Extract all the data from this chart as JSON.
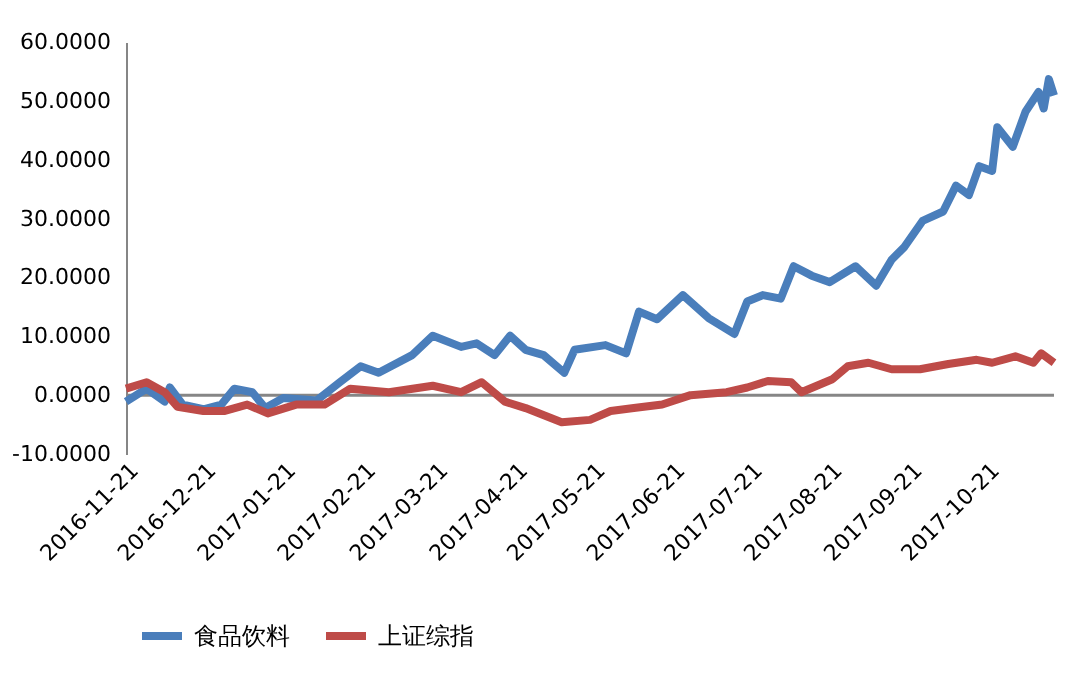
{
  "chart_data": {
    "type": "line",
    "xlim": [
      "2016-11-21",
      "2017-11-16"
    ],
    "xticks": [
      "2016-11-21",
      "2016-12-21",
      "2017-01-21",
      "2017-02-21",
      "2017-03-21",
      "2017-04-21",
      "2017-05-21",
      "2017-06-21",
      "2017-07-21",
      "2017-08-21",
      "2017-09-21",
      "2017-10-21"
    ],
    "ylim": [
      -10,
      60
    ],
    "yticks": [
      {
        "value": -10,
        "label": "-10.0000"
      },
      {
        "value": 0,
        "label": "0.0000"
      },
      {
        "value": 10,
        "label": "10.0000"
      },
      {
        "value": 20,
        "label": "20.0000"
      },
      {
        "value": 30,
        "label": "30.0000"
      },
      {
        "value": 40,
        "label": "40.0000"
      },
      {
        "value": 50,
        "label": "50.0000"
      },
      {
        "value": 60,
        "label": "60.0000"
      }
    ],
    "grid": false,
    "legend": "bottom",
    "marker": "none",
    "line_style": "solid",
    "ref_lines": [
      {
        "axis": "y",
        "value": 0,
        "color": "#868686"
      }
    ],
    "series": [
      {
        "name": "食品饮料",
        "color": "#4a7ebb",
        "x": [
          "2016-11-21",
          "2016-11-29",
          "2016-12-06",
          "2016-12-08",
          "2016-12-13",
          "2016-12-21",
          "2016-12-28",
          "2017-01-02",
          "2017-01-09",
          "2017-01-14",
          "2017-01-21",
          "2017-02-03",
          "2017-02-12",
          "2017-02-20",
          "2017-02-27",
          "2017-03-12",
          "2017-03-20",
          "2017-03-31",
          "2017-04-06",
          "2017-04-13",
          "2017-04-19",
          "2017-04-25",
          "2017-05-02",
          "2017-05-10",
          "2017-05-14",
          "2017-05-26",
          "2017-06-03",
          "2017-06-08",
          "2017-06-15",
          "2017-06-25",
          "2017-07-05",
          "2017-07-15",
          "2017-07-20",
          "2017-07-26",
          "2017-08-02",
          "2017-08-07",
          "2017-08-14",
          "2017-08-21",
          "2017-08-31",
          "2017-09-08",
          "2017-09-14",
          "2017-09-19",
          "2017-09-26",
          "2017-10-04",
          "2017-10-09",
          "2017-10-14",
          "2017-10-18",
          "2017-10-23",
          "2017-10-25",
          "2017-10-31",
          "2017-11-05",
          "2017-11-10",
          "2017-11-12",
          "2017-11-14",
          "2017-11-16"
        ],
        "values": [
          -1.1,
          1.1,
          -1.1,
          1.3,
          -1.6,
          -2.4,
          -1.6,
          1.1,
          0.5,
          -2.2,
          -0.5,
          -0.9,
          2.2,
          4.9,
          3.8,
          6.8,
          10.1,
          8.2,
          8.8,
          6.8,
          10.1,
          7.7,
          6.8,
          3.8,
          7.7,
          8.5,
          7.1,
          14.2,
          12.9,
          17.0,
          13.1,
          10.4,
          15.9,
          17.0,
          16.4,
          21.9,
          20.3,
          19.2,
          21.9,
          18.6,
          23.0,
          25.2,
          29.6,
          31.2,
          35.6,
          34.0,
          38.9,
          38.1,
          45.5,
          42.2,
          48.2,
          51.5,
          48.7,
          53.7,
          50.9
        ]
      },
      {
        "name": "上证综指",
        "color": "#be4b48",
        "x": [
          "2016-11-21",
          "2016-11-29",
          "2016-12-06",
          "2016-12-11",
          "2016-12-21",
          "2016-12-29",
          "2017-01-07",
          "2017-01-15",
          "2017-01-26",
          "2017-02-06",
          "2017-02-16",
          "2017-03-03",
          "2017-03-20",
          "2017-03-31",
          "2017-04-08",
          "2017-04-17",
          "2017-04-25",
          "2017-05-09",
          "2017-05-20",
          "2017-05-28",
          "2017-06-06",
          "2017-06-17",
          "2017-06-28",
          "2017-07-12",
          "2017-07-20",
          "2017-07-28",
          "2017-08-06",
          "2017-08-10",
          "2017-08-22",
          "2017-08-28",
          "2017-09-05",
          "2017-09-14",
          "2017-09-25",
          "2017-10-06",
          "2017-10-17",
          "2017-10-23",
          "2017-11-01",
          "2017-11-08",
          "2017-11-11",
          "2017-11-16"
        ],
        "values": [
          1.1,
          2.2,
          0.5,
          -2.0,
          -2.7,
          -2.7,
          -1.6,
          -3.1,
          -1.6,
          -1.6,
          1.1,
          0.5,
          1.6,
          0.5,
          2.2,
          -1.1,
          -2.2,
          -4.6,
          -4.2,
          -2.7,
          -2.2,
          -1.6,
          0.0,
          0.5,
          1.3,
          2.4,
          2.2,
          0.5,
          2.7,
          4.9,
          5.5,
          4.4,
          4.4,
          5.3,
          6.0,
          5.5,
          6.6,
          5.5,
          7.1,
          5.5
        ]
      }
    ]
  }
}
